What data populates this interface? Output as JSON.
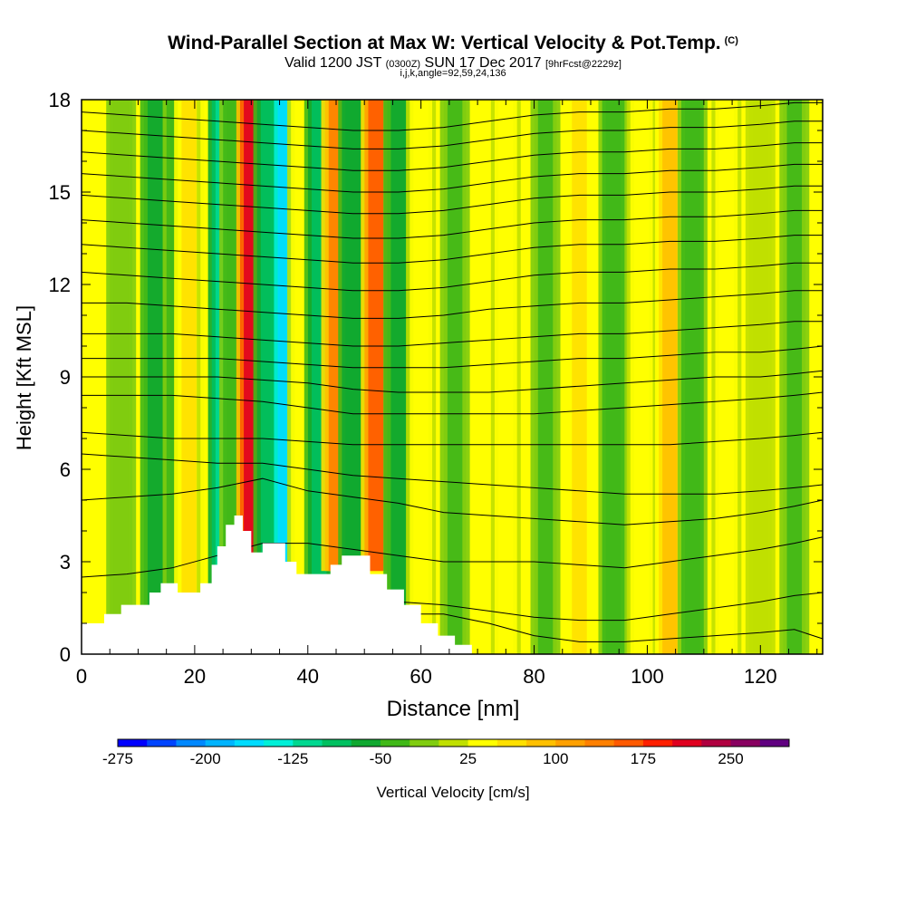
{
  "header": {
    "title": "Wind-Parallel Section at Max W: Vertical Velocity & Pot.Temp.",
    "copyright": "(C)",
    "subtitle_a": "Valid 1200 JST",
    "subtitle_b": "(0300Z)",
    "subtitle_c": "SUN 17 Dec 2017",
    "subtitle_d": "[9hrFcst@2229z]",
    "subtitle2": "i,j,k,angle=92,59,24,136"
  },
  "chart_data": {
    "type": "heatmap",
    "title": "Wind-Parallel Section at Max W: Vertical Velocity & Pot.Temp.",
    "xlabel": "Distance [nm]",
    "ylabel": "Height [Kft MSL]",
    "xlim": [
      0,
      131
    ],
    "ylim": [
      0,
      18
    ],
    "x_ticks": [
      0,
      20,
      40,
      60,
      80,
      100,
      120
    ],
    "y_ticks": [
      0,
      3,
      6,
      9,
      12,
      15,
      18
    ],
    "colorbar": {
      "label": "Vertical Velocity [cm/s]",
      "ticks": [
        -275,
        -200,
        -125,
        -50,
        25,
        100,
        175,
        250
      ],
      "colors": [
        "#0000ff",
        "#0044ff",
        "#0088ff",
        "#00b4ff",
        "#00dcff",
        "#00f0d8",
        "#00d890",
        "#00c060",
        "#10a830",
        "#40b818",
        "#80cc10",
        "#c0e000",
        "#ffff00",
        "#ffe000",
        "#ffc000",
        "#ffa000",
        "#ff8000",
        "#ff5a00",
        "#ff2000",
        "#e00020",
        "#b00040",
        "#880060",
        "#600080"
      ]
    },
    "wind_bands": [
      {
        "x": 7,
        "w": -20
      },
      {
        "x": 13,
        "w": -60
      },
      {
        "x": 17,
        "w": -40
      },
      {
        "x": 19,
        "w": 60
      },
      {
        "x": 23,
        "w": 50
      },
      {
        "x": 25,
        "w": -120
      },
      {
        "x": 27,
        "w": -50
      },
      {
        "x": 30,
        "w": 210
      },
      {
        "x": 33,
        "w": -80
      },
      {
        "x": 36,
        "w": -175
      },
      {
        "x": 39,
        "w": 40
      },
      {
        "x": 42,
        "w": -100
      },
      {
        "x": 45,
        "w": 130
      },
      {
        "x": 48,
        "w": -70
      },
      {
        "x": 52,
        "w": 160
      },
      {
        "x": 56,
        "w": -60
      },
      {
        "x": 60,
        "w": 40
      },
      {
        "x": 66,
        "w": -30
      },
      {
        "x": 75,
        "w": 40
      },
      {
        "x": 82,
        "w": -30
      },
      {
        "x": 88,
        "w": 60
      },
      {
        "x": 94,
        "w": -40
      },
      {
        "x": 99,
        "w": 40
      },
      {
        "x": 104,
        "w": 90
      },
      {
        "x": 108,
        "w": -50
      },
      {
        "x": 114,
        "w": 50
      },
      {
        "x": 120,
        "w": 20
      },
      {
        "x": 126,
        "w": -30
      }
    ],
    "terrain": [
      {
        "x": 0,
        "h": 1.0
      },
      {
        "x": 4,
        "h": 1.3
      },
      {
        "x": 7,
        "h": 1.6
      },
      {
        "x": 12,
        "h": 2.0
      },
      {
        "x": 14,
        "h": 2.3
      },
      {
        "x": 17,
        "h": 2.0
      },
      {
        "x": 21,
        "h": 2.3
      },
      {
        "x": 23,
        "h": 2.9
      },
      {
        "x": 24,
        "h": 3.5
      },
      {
        "x": 25.5,
        "h": 4.2
      },
      {
        "x": 27,
        "h": 4.5
      },
      {
        "x": 28.5,
        "h": 4.0
      },
      {
        "x": 30,
        "h": 3.3
      },
      {
        "x": 32,
        "h": 3.6
      },
      {
        "x": 36,
        "h": 3.0
      },
      {
        "x": 38,
        "h": 2.6
      },
      {
        "x": 42,
        "h": 2.6
      },
      {
        "x": 44,
        "h": 2.9
      },
      {
        "x": 46,
        "h": 3.2
      },
      {
        "x": 51,
        "h": 2.6
      },
      {
        "x": 54,
        "h": 2.1
      },
      {
        "x": 57,
        "h": 1.6
      },
      {
        "x": 60,
        "h": 1.0
      },
      {
        "x": 63,
        "h": 0.6
      },
      {
        "x": 66,
        "h": 0.3
      },
      {
        "x": 69,
        "h": 0.0
      },
      {
        "x": 131,
        "h": 0.0
      }
    ],
    "isentropes": [
      [
        0.3,
        0.4,
        0.5,
        0.6,
        0.7,
        1.2,
        1.3,
        1.3,
        1.3,
        1.0,
        0.6,
        0.4,
        0.4,
        0.5,
        0.6,
        0.7,
        0.8,
        0.5
      ],
      [
        0.7,
        0.8,
        0.9,
        1.0,
        1.1,
        1.5,
        1.6,
        1.7,
        1.6,
        1.4,
        1.2,
        1.1,
        1.1,
        1.3,
        1.5,
        1.7,
        1.9,
        2.0
      ],
      [
        2.5,
        2.6,
        2.8,
        3.2,
        3.6,
        3.6,
        3.4,
        3.2,
        3.0,
        3.0,
        3.0,
        2.9,
        2.8,
        3.0,
        3.2,
        3.4,
        3.6,
        3.8
      ],
      [
        5.0,
        5.1,
        5.2,
        5.4,
        5.7,
        5.3,
        5.1,
        4.9,
        4.6,
        4.5,
        4.4,
        4.3,
        4.2,
        4.3,
        4.4,
        4.6,
        4.8,
        5.0
      ],
      [
        6.5,
        6.4,
        6.3,
        6.2,
        6.2,
        6.0,
        5.8,
        5.7,
        5.6,
        5.5,
        5.4,
        5.3,
        5.2,
        5.2,
        5.2,
        5.3,
        5.4,
        5.5
      ],
      [
        7.2,
        7.1,
        7.0,
        7.0,
        7.0,
        6.9,
        6.8,
        6.8,
        6.8,
        6.8,
        6.8,
        6.8,
        6.8,
        6.8,
        6.9,
        7.0,
        7.1,
        7.2
      ],
      [
        8.4,
        8.4,
        8.4,
        8.3,
        8.2,
        8.0,
        7.8,
        7.8,
        7.8,
        7.8,
        7.8,
        7.9,
        8.0,
        8.1,
        8.2,
        8.3,
        8.4,
        8.5
      ],
      [
        9.0,
        9.0,
        9.0,
        9.0,
        8.9,
        8.8,
        8.6,
        8.5,
        8.5,
        8.5,
        8.6,
        8.7,
        8.8,
        8.9,
        9.0,
        9.0,
        9.1,
        9.2
      ],
      [
        9.6,
        9.6,
        9.6,
        9.6,
        9.5,
        9.4,
        9.3,
        9.3,
        9.3,
        9.4,
        9.5,
        9.6,
        9.6,
        9.7,
        9.8,
        9.8,
        9.9,
        10.0
      ],
      [
        10.4,
        10.4,
        10.4,
        10.3,
        10.2,
        10.1,
        10.0,
        10.0,
        10.1,
        10.2,
        10.3,
        10.4,
        10.4,
        10.5,
        10.6,
        10.7,
        10.8,
        10.8
      ],
      [
        11.4,
        11.4,
        11.3,
        11.2,
        11.1,
        11.0,
        10.9,
        10.9,
        11.0,
        11.2,
        11.3,
        11.4,
        11.4,
        11.5,
        11.6,
        11.7,
        11.8,
        11.8
      ],
      [
        12.4,
        12.3,
        12.2,
        12.1,
        12.0,
        11.9,
        11.8,
        11.8,
        11.9,
        12.1,
        12.3,
        12.4,
        12.4,
        12.5,
        12.5,
        12.6,
        12.7,
        12.7
      ],
      [
        13.3,
        13.2,
        13.1,
        13.0,
        12.9,
        12.8,
        12.7,
        12.7,
        12.8,
        13.0,
        13.2,
        13.3,
        13.3,
        13.4,
        13.4,
        13.5,
        13.6,
        13.6
      ],
      [
        14.1,
        14.0,
        13.9,
        13.8,
        13.7,
        13.6,
        13.5,
        13.5,
        13.6,
        13.8,
        14.0,
        14.1,
        14.1,
        14.2,
        14.2,
        14.3,
        14.4,
        14.4
      ],
      [
        14.9,
        14.8,
        14.7,
        14.6,
        14.5,
        14.4,
        14.3,
        14.3,
        14.4,
        14.6,
        14.8,
        14.9,
        14.9,
        15.0,
        15.0,
        15.1,
        15.2,
        15.2
      ],
      [
        15.6,
        15.5,
        15.4,
        15.3,
        15.2,
        15.1,
        15.0,
        15.0,
        15.1,
        15.3,
        15.5,
        15.6,
        15.6,
        15.7,
        15.7,
        15.8,
        15.9,
        15.9
      ],
      [
        16.3,
        16.2,
        16.1,
        16.0,
        15.9,
        15.8,
        15.7,
        15.7,
        15.8,
        16.0,
        16.2,
        16.3,
        16.3,
        16.4,
        16.4,
        16.5,
        16.6,
        16.6
      ],
      [
        17.0,
        16.9,
        16.8,
        16.7,
        16.6,
        16.5,
        16.4,
        16.4,
        16.5,
        16.7,
        16.9,
        17.0,
        17.0,
        17.1,
        17.1,
        17.2,
        17.3,
        17.3
      ],
      [
        17.6,
        17.5,
        17.4,
        17.3,
        17.2,
        17.1,
        17.0,
        17.0,
        17.1,
        17.3,
        17.5,
        17.6,
        17.6,
        17.7,
        17.7,
        17.8,
        17.9,
        17.9
      ]
    ],
    "isentrope_x": [
      0,
      8,
      16,
      24,
      32,
      40,
      48,
      56,
      64,
      72,
      80,
      88,
      96,
      104,
      112,
      120,
      126,
      131
    ]
  }
}
